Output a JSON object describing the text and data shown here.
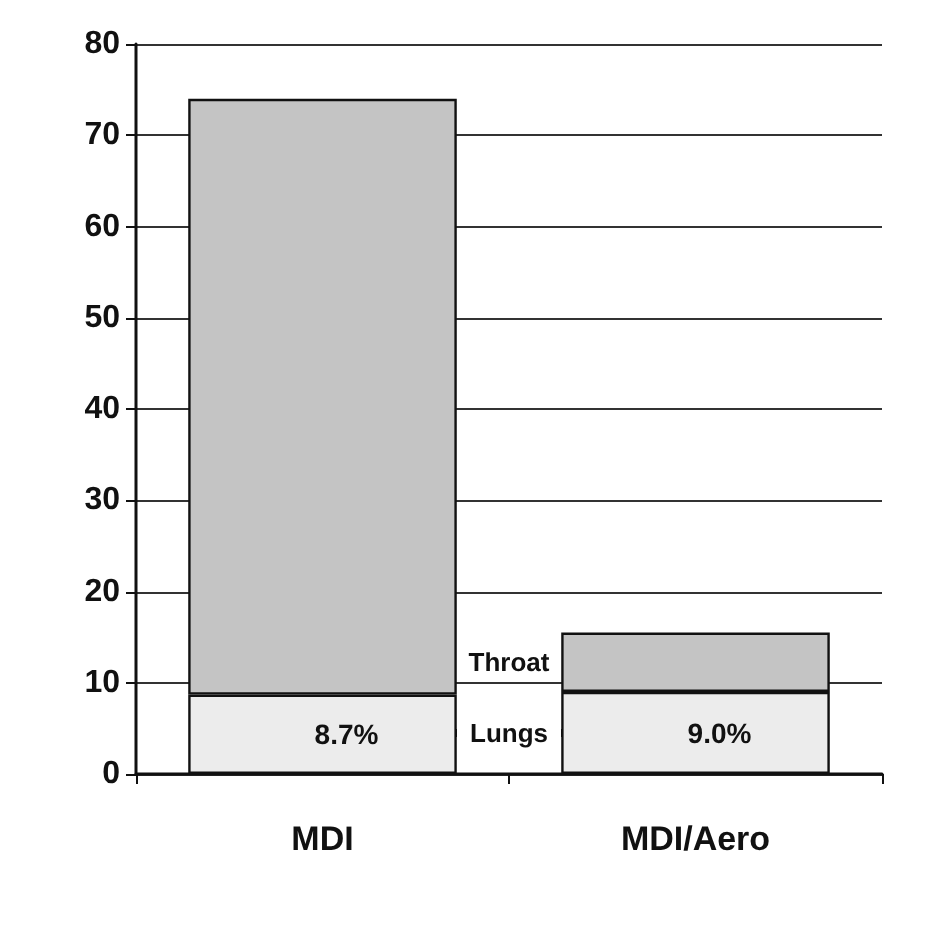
{
  "chart_data": {
    "type": "bar",
    "stacked": true,
    "categories": [
      "MDI",
      "MDI/Aero"
    ],
    "series": [
      {
        "name": "Lungs",
        "color": "#ececec",
        "values": [
          8.7,
          9.0
        ],
        "value_labels": [
          "8.7%",
          "9.0%"
        ]
      },
      {
        "name": "Throat",
        "color": "#c4c4c4",
        "values": [
          65.3,
          6.5
        ]
      }
    ],
    "ylim": [
      0,
      80
    ],
    "yticks": [
      0,
      10,
      20,
      30,
      40,
      50,
      60,
      70,
      80
    ],
    "grid": "y",
    "legend": false
  }
}
